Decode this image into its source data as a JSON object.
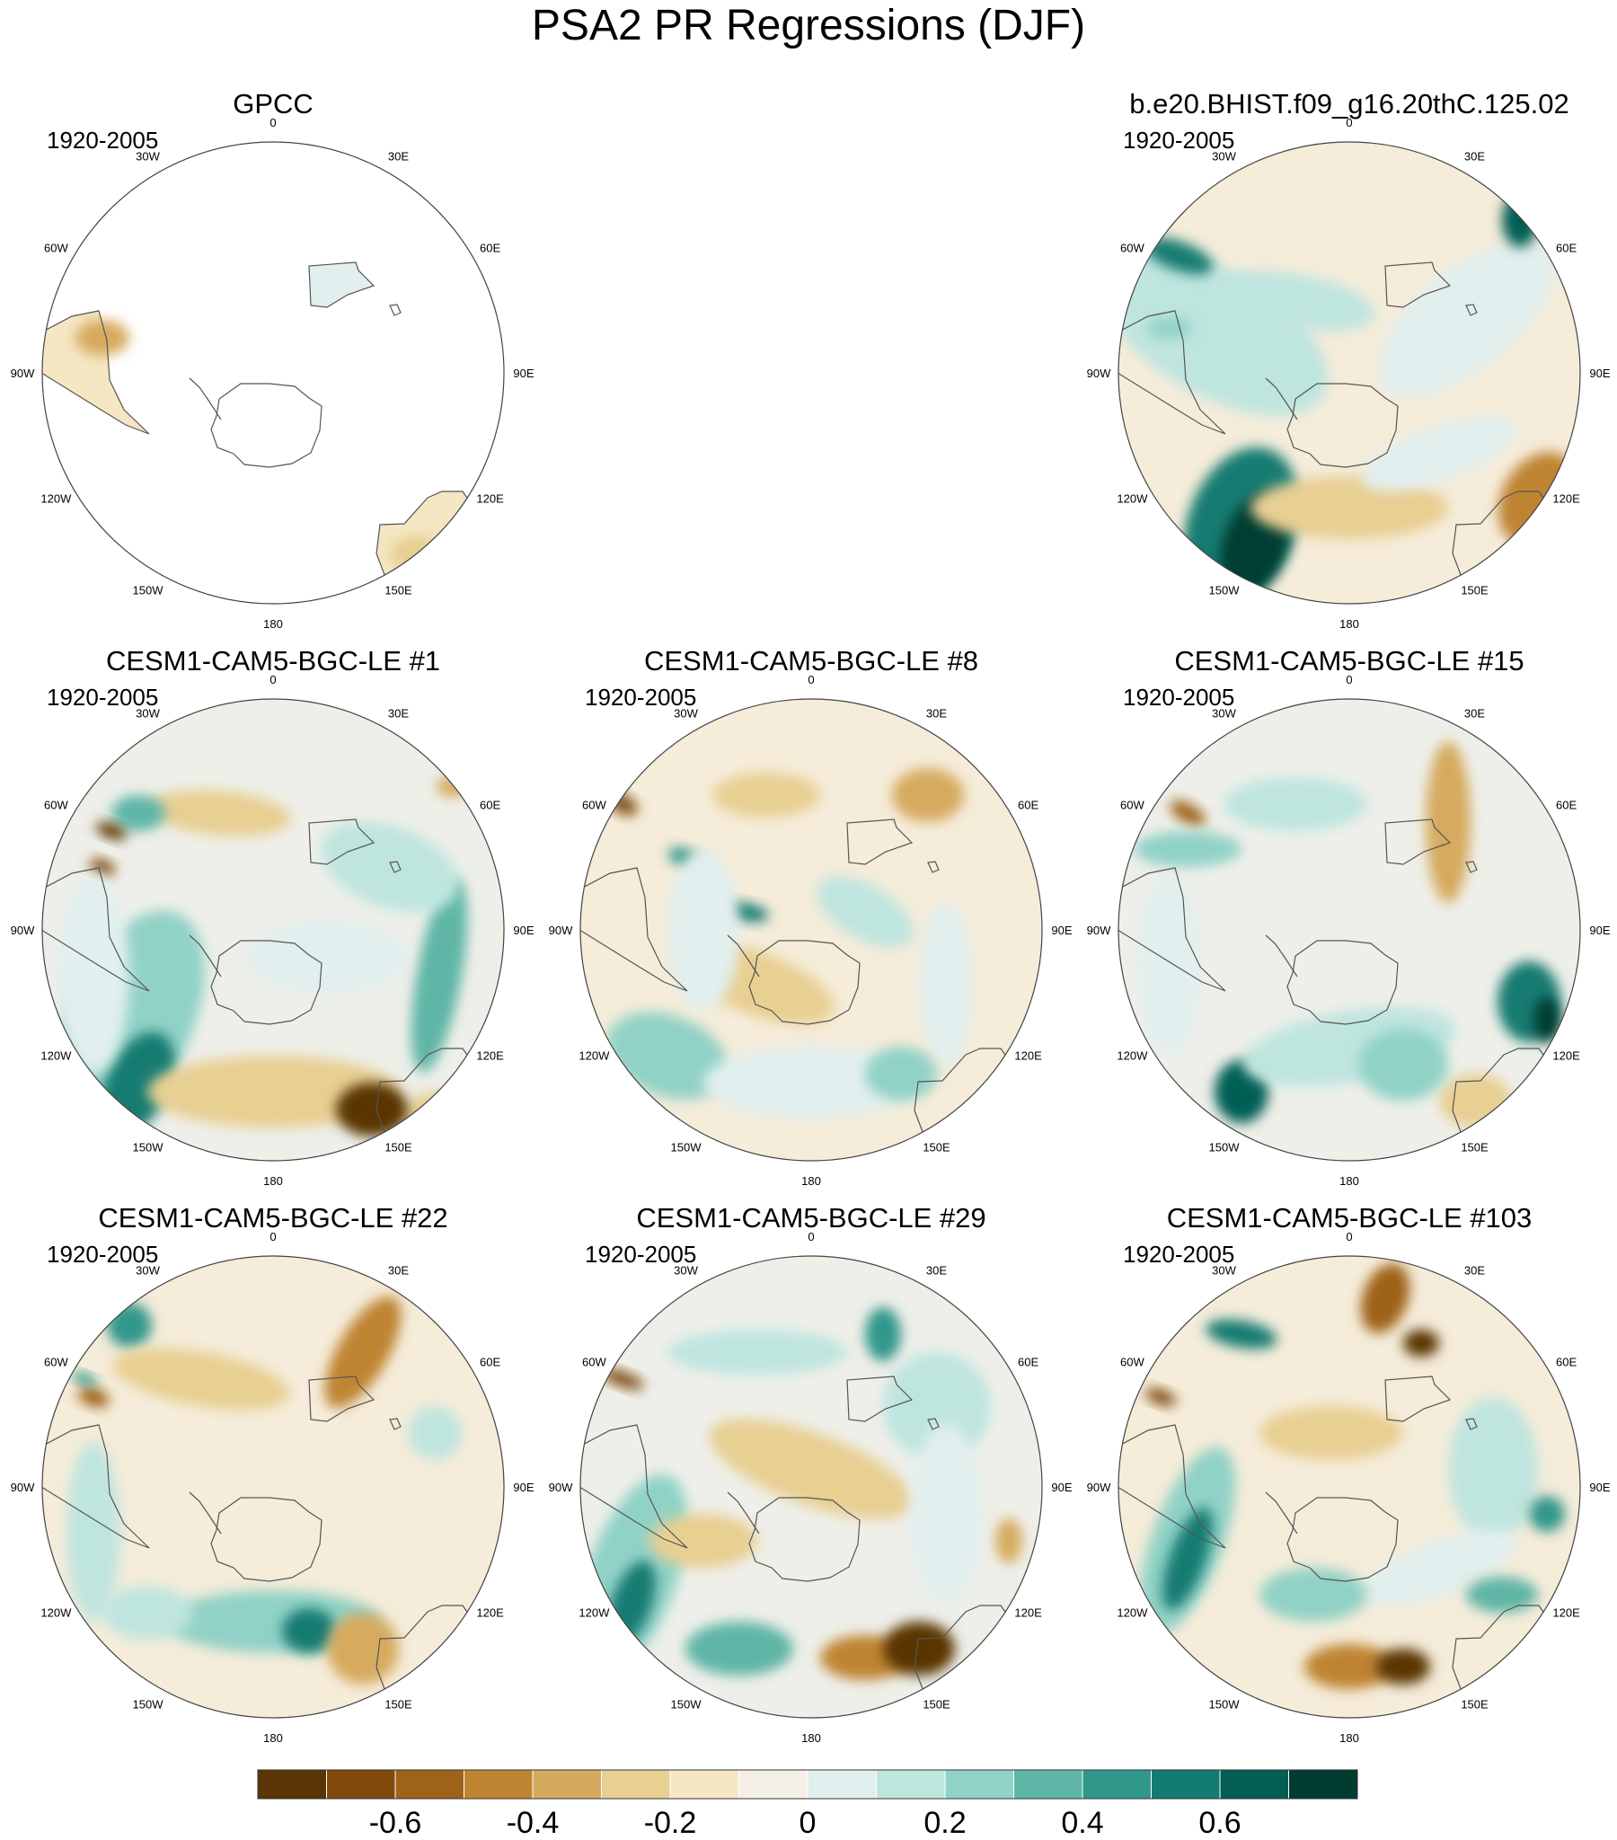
{
  "main_title": "PSA2 PR Regressions (DJF)",
  "panels": [
    {
      "id": "gpcc",
      "title": "GPCC",
      "period": "1920-2005"
    },
    {
      "id": "b20",
      "title": "b.e20.BHIST.f09_g16.20thC.125.02",
      "period": "1920-2005"
    },
    {
      "id": "le1",
      "title": "CESM1-CAM5-BGC-LE #1",
      "period": "1920-2005"
    },
    {
      "id": "le8",
      "title": "CESM1-CAM5-BGC-LE #8",
      "period": "1920-2005"
    },
    {
      "id": "le15",
      "title": "CESM1-CAM5-BGC-LE #15",
      "period": "1920-2005"
    },
    {
      "id": "le22",
      "title": "CESM1-CAM5-BGC-LE #22",
      "period": "1920-2005"
    },
    {
      "id": "le29",
      "title": "CESM1-CAM5-BGC-LE #29",
      "period": "1920-2005"
    },
    {
      "id": "le103",
      "title": "CESM1-CAM5-BGC-LE #103",
      "period": "1920-2005"
    }
  ],
  "lon_labels": [
    "0",
    "30E",
    "60E",
    "90E",
    "120E",
    "150E",
    "180",
    "150W",
    "120W",
    "90W",
    "60W",
    "30W"
  ],
  "colorbar": {
    "colors": [
      "#5a3505",
      "#7f4a0c",
      "#9e6218",
      "#bf8432",
      "#d6aa5e",
      "#e8cf92",
      "#f5e6c4",
      "#f5f0e6",
      "#e1efee",
      "#bfe5df",
      "#91d2c6",
      "#5fb6a6",
      "#31978b",
      "#127c72",
      "#045e54",
      "#003c30"
    ],
    "tick_labels": [
      "-0.6",
      "-0.4",
      "-0.2",
      "0",
      "0.2",
      "0.4",
      "0.6"
    ]
  },
  "chart_data": {
    "type": "heatmap",
    "title": "PSA2 PR Regressions (DJF)",
    "projection": "south polar stereographic",
    "period": "1920-2005",
    "contour_levels": [
      -0.7,
      -0.6,
      -0.5,
      -0.4,
      -0.3,
      -0.2,
      -0.1,
      0,
      0.1,
      0.2,
      0.3,
      0.4,
      0.5,
      0.6,
      0.7
    ],
    "panels": [
      {
        "name": "GPCC",
        "coverage": "land only",
        "notes": "weak signals over South America, southern Africa, Australia and New Zealand"
      },
      {
        "name": "b.e20.BHIST.f09_g16.20thC.125.02",
        "max_positive": 0.7,
        "max_negative": -0.6
      },
      {
        "name": "CESM1-CAM5-BGC-LE #1",
        "max_positive": 0.7,
        "max_negative": -0.7
      },
      {
        "name": "CESM1-CAM5-BGC-LE #8",
        "max_positive": 0.5,
        "max_negative": -0.7
      },
      {
        "name": "CESM1-CAM5-BGC-LE #15",
        "max_positive": 0.6,
        "max_negative": -0.5
      },
      {
        "name": "CESM1-CAM5-BGC-LE #22",
        "max_positive": 0.5,
        "max_negative": -0.5
      },
      {
        "name": "CESM1-CAM5-BGC-LE #29",
        "max_positive": 0.6,
        "max_negative": -0.5
      },
      {
        "name": "CESM1-CAM5-BGC-LE #103",
        "max_positive": 0.6,
        "max_negative": -0.6
      }
    ]
  }
}
